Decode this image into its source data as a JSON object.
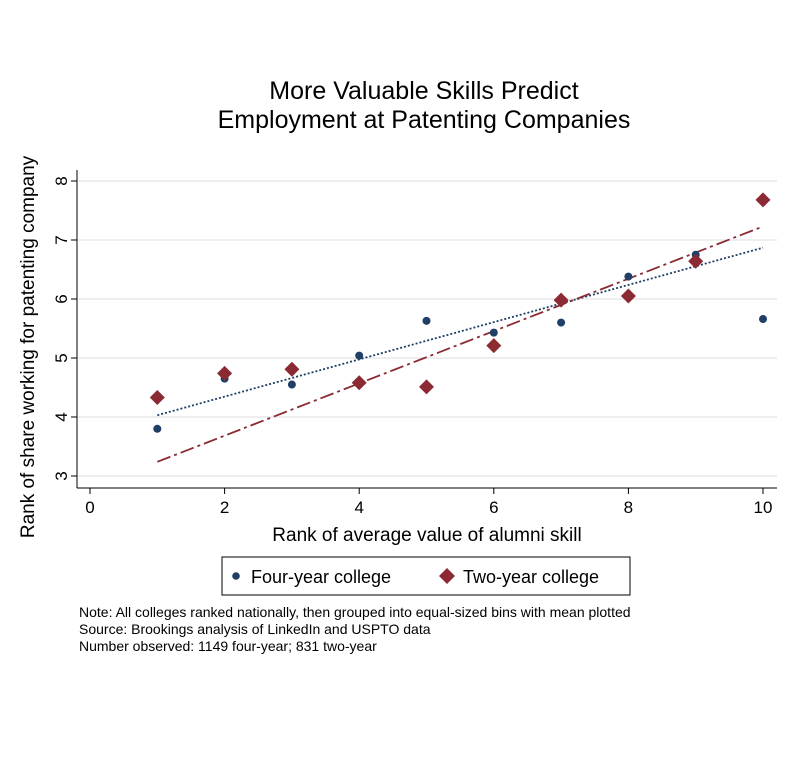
{
  "chart_data": {
    "type": "scatter",
    "title": [
      "More Valuable Skills Predict",
      "Employment at Patenting Companies"
    ],
    "xlabel": "Rank of average value of alumni skill",
    "ylabel": "Rank of share working for patenting company",
    "xlim": [
      0,
      10
    ],
    "ylim": [
      3,
      8
    ],
    "x_ticks": [
      0,
      2,
      4,
      6,
      8,
      10
    ],
    "y_ticks": [
      3,
      4,
      5,
      6,
      7,
      8
    ],
    "grid": true,
    "legend_position": "bottom",
    "series": [
      {
        "name": "Four-year college",
        "marker": "circle",
        "color": "#1f3f66",
        "x": [
          1,
          2,
          3,
          4,
          5,
          6,
          7,
          8,
          9,
          10
        ],
        "y": [
          3.8,
          4.65,
          4.55,
          5.04,
          5.63,
          5.43,
          5.6,
          6.38,
          6.75,
          5.66
        ],
        "fit": {
          "style": "dotted",
          "start": [
            1,
            4.03
          ],
          "end": [
            10,
            6.87
          ]
        }
      },
      {
        "name": "Two-year college",
        "marker": "diamond",
        "color": "#8b2a33",
        "x": [
          1,
          2,
          3,
          4,
          5,
          6,
          7,
          8,
          9,
          10
        ],
        "y": [
          4.33,
          4.74,
          4.81,
          4.58,
          4.51,
          5.21,
          5.98,
          6.05,
          6.64,
          7.68
        ],
        "fit": {
          "style": "dash-dot",
          "start": [
            1,
            3.24
          ],
          "end": [
            10,
            7.23
          ]
        }
      }
    ],
    "notes": [
      "Note: All colleges ranked nationally, then grouped into equal-sized bins with mean plotted",
      "Source: Brookings analysis of LinkedIn and USPTO data",
      "Number observed: 1149 four-year; 831 two-year"
    ]
  }
}
